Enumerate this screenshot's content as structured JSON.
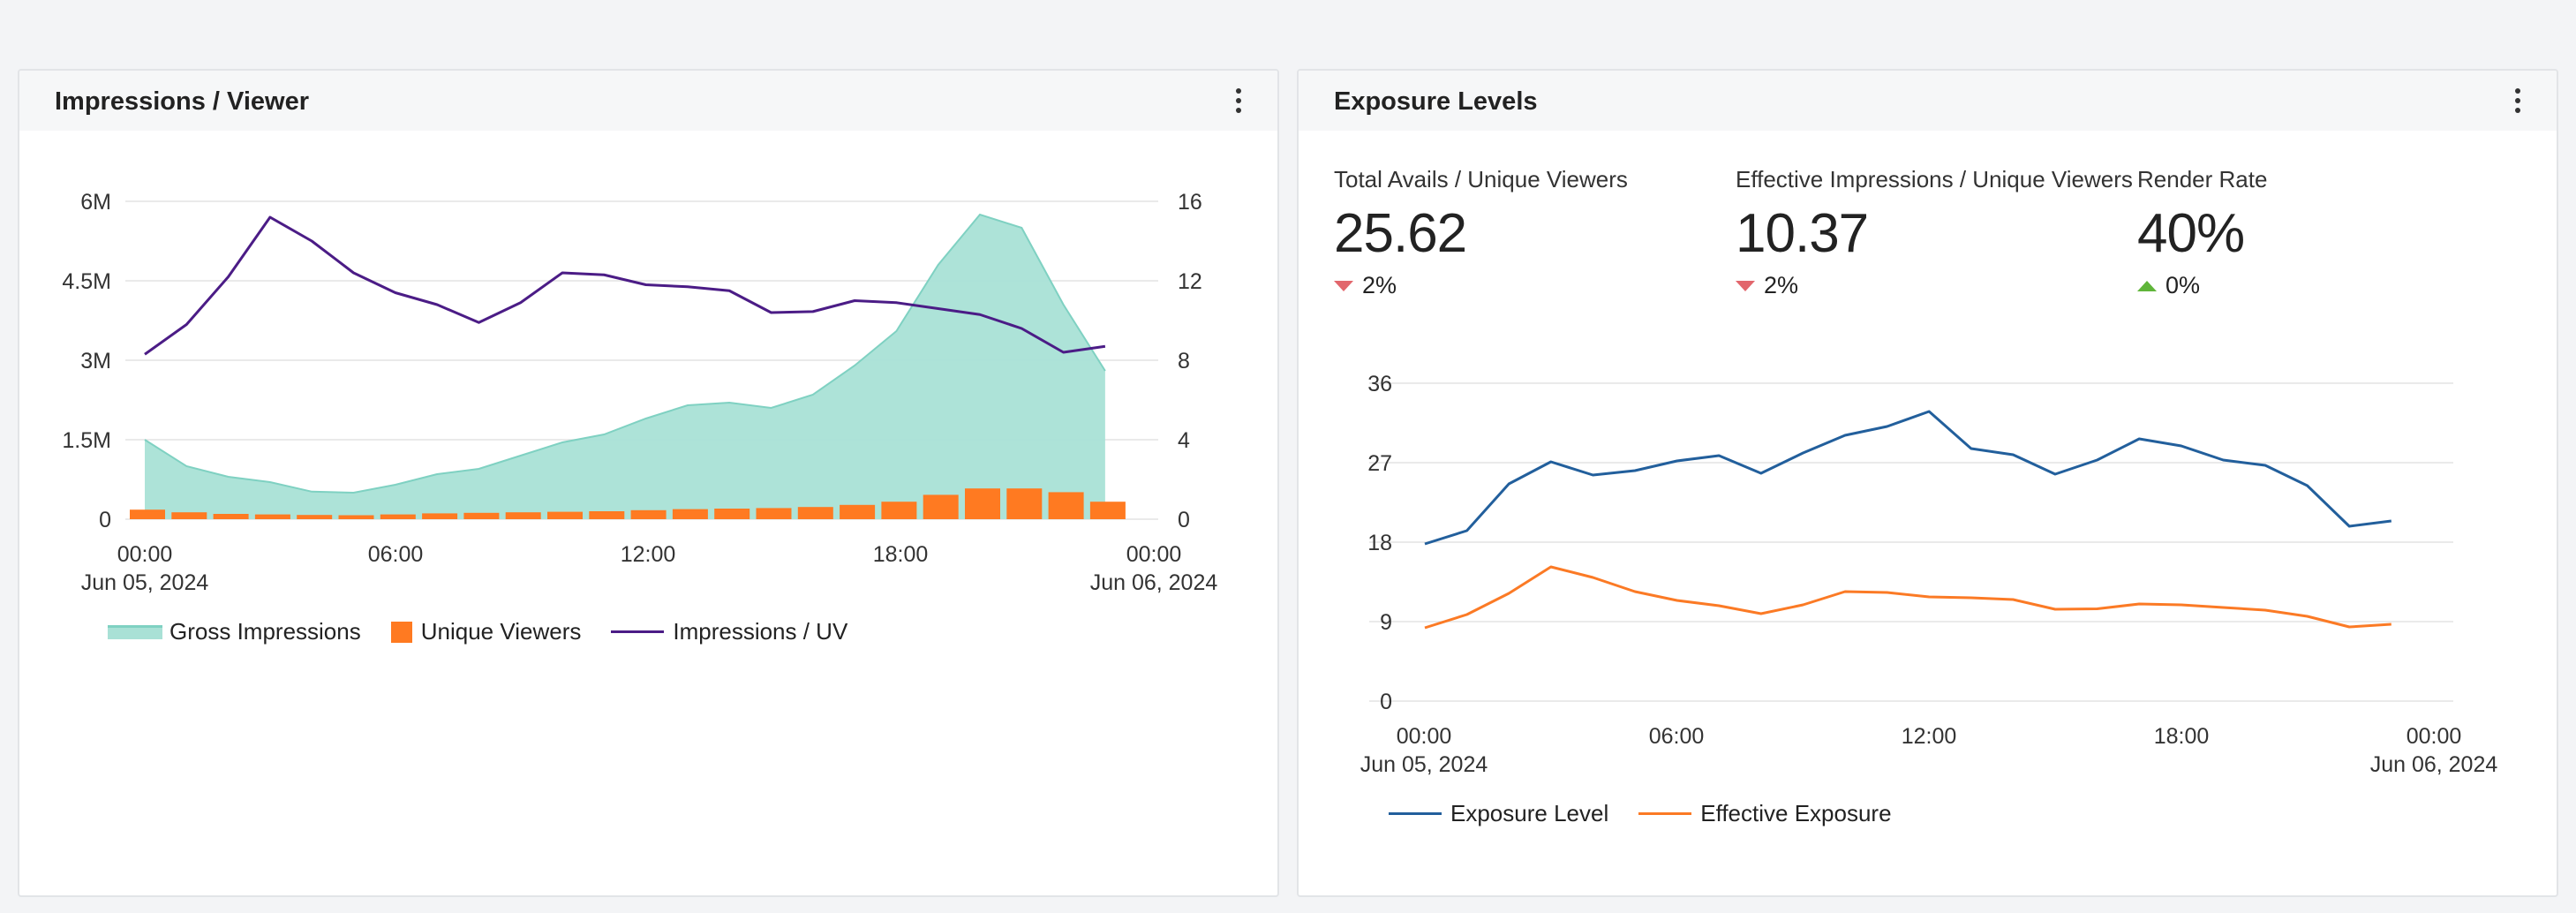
{
  "colors": {
    "area_fill": "#a9e1d6",
    "area_stroke": "#7fd1c2",
    "bar": "#ff7a21",
    "line_purple": "#4b1c86",
    "line_blue": "#225f9c",
    "line_orange": "#fb7a25",
    "grid": "#e3e3e3",
    "delta_down": "#e2666c",
    "delta_up": "#5fb53a"
  },
  "left_panel": {
    "title": "Impressions / Viewer",
    "legend": [
      "Gross Impressions",
      "Unique Viewers",
      "Impressions / UV"
    ]
  },
  "right_panel": {
    "title": "Exposure Levels",
    "kpis": [
      {
        "label": "Total Avails / Unique Viewers",
        "value": "25.62",
        "delta": "2%",
        "direction": "down"
      },
      {
        "label": "Effective Impressions / Unique Viewers",
        "value": "10.37",
        "delta": "2%",
        "direction": "down"
      },
      {
        "label": "Render Rate",
        "value": "40%",
        "delta": "0%",
        "direction": "up"
      }
    ],
    "legend": [
      "Exposure Level",
      "Effective Exposure"
    ]
  },
  "chart_data": [
    {
      "type": "area",
      "title": "Impressions / Viewer",
      "x": [
        "00:00",
        "01:00",
        "02:00",
        "03:00",
        "04:00",
        "05:00",
        "06:00",
        "07:00",
        "08:00",
        "09:00",
        "10:00",
        "11:00",
        "12:00",
        "13:00",
        "14:00",
        "15:00",
        "16:00",
        "17:00",
        "18:00",
        "19:00",
        "20:00",
        "21:00",
        "22:00",
        "23:00"
      ],
      "xticks": [
        "00:00",
        "06:00",
        "12:00",
        "18:00",
        "00:00"
      ],
      "xticks_sub": [
        "Jun 05, 2024",
        "",
        "",
        "",
        "Jun 06, 2024"
      ],
      "y_left_ticks": [
        "0",
        "1.5M",
        "3M",
        "4.5M",
        "6M"
      ],
      "y_left_lim": [
        0,
        6000000
      ],
      "y_right_ticks": [
        "0",
        "4",
        "8",
        "12",
        "16"
      ],
      "y_right_lim": [
        0,
        16
      ],
      "series": [
        {
          "name": "Gross Impressions",
          "kind": "area",
          "axis": "left",
          "values": [
            1500000,
            1000000,
            800000,
            700000,
            520000,
            500000,
            650000,
            850000,
            950000,
            1200000,
            1450000,
            1600000,
            1900000,
            2150000,
            2200000,
            2100000,
            2350000,
            2900000,
            3550000,
            4800000,
            5750000,
            5500000,
            4050000,
            2800000
          ]
        },
        {
          "name": "Unique Viewers",
          "kind": "bar",
          "axis": "left",
          "values": [
            180000,
            130000,
            100000,
            90000,
            80000,
            75000,
            90000,
            110000,
            120000,
            130000,
            140000,
            150000,
            170000,
            190000,
            200000,
            210000,
            230000,
            270000,
            330000,
            460000,
            580000,
            580000,
            510000,
            330000
          ]
        },
        {
          "name": "Impressions / UV",
          "kind": "line",
          "axis": "right",
          "values": [
            8.3,
            9.8,
            12.2,
            15.2,
            14.0,
            12.4,
            11.4,
            10.8,
            9.9,
            10.9,
            12.4,
            12.3,
            11.8,
            11.7,
            11.5,
            10.4,
            10.45,
            11.0,
            10.9,
            10.6,
            10.3,
            9.6,
            8.4,
            8.7
          ]
        }
      ],
      "legend_position": "bottom-left",
      "grid": true
    },
    {
      "type": "line",
      "title": "Exposure Levels",
      "x": [
        "00:00",
        "01:00",
        "02:00",
        "03:00",
        "04:00",
        "05:00",
        "06:00",
        "07:00",
        "08:00",
        "09:00",
        "10:00",
        "11:00",
        "12:00",
        "13:00",
        "14:00",
        "15:00",
        "16:00",
        "17:00",
        "18:00",
        "19:00",
        "20:00",
        "21:00",
        "22:00",
        "23:00"
      ],
      "xticks": [
        "00:00",
        "06:00",
        "12:00",
        "18:00",
        "00:00"
      ],
      "xticks_sub": [
        "Jun 05, 2024",
        "",
        "",
        "",
        "Jun 06, 2024"
      ],
      "y_ticks": [
        "0",
        "9",
        "18",
        "27",
        "36"
      ],
      "ylim": [
        0,
        36
      ],
      "series": [
        {
          "name": "Exposure Level",
          "values": [
            17.8,
            19.3,
            24.6,
            27.1,
            25.6,
            26.1,
            27.2,
            27.8,
            25.8,
            28.1,
            30.1,
            31.1,
            32.8,
            28.6,
            27.9,
            25.7,
            27.3,
            29.7,
            28.9,
            27.3,
            26.7,
            24.4,
            19.8,
            20.4
          ]
        },
        {
          "name": "Effective Exposure",
          "values": [
            8.3,
            9.8,
            12.2,
            15.2,
            14.0,
            12.4,
            11.4,
            10.8,
            9.9,
            10.9,
            12.4,
            12.3,
            11.8,
            11.7,
            11.5,
            10.4,
            10.45,
            11.0,
            10.9,
            10.6,
            10.3,
            9.6,
            8.4,
            8.7
          ]
        }
      ],
      "legend_position": "bottom-left",
      "grid": true
    }
  ]
}
